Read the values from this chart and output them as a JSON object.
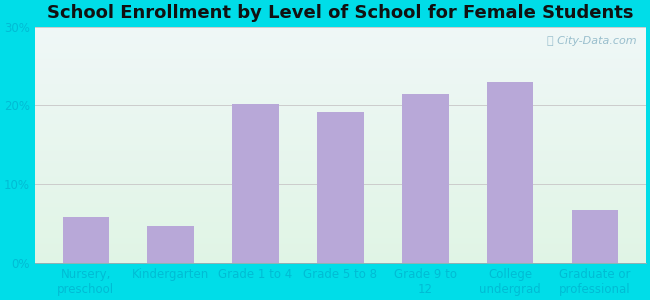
{
  "title": "School Enrollment by Level of School for Female Students",
  "categories": [
    "Nursery,\npreschool",
    "Kindergarten",
    "Grade 1 to 4",
    "Grade 5 to 8",
    "Grade 9 to\n12",
    "College\nundergrad",
    "Graduate or\nprofessional"
  ],
  "values": [
    5.8,
    4.7,
    20.2,
    19.2,
    21.5,
    23.0,
    6.7
  ],
  "bar_color": "#b8a8d8",
  "ylim": [
    0,
    30
  ],
  "yticks": [
    0,
    10,
    20,
    30
  ],
  "ytick_labels": [
    "0%",
    "10%",
    "20%",
    "30%"
  ],
  "title_fontsize": 13,
  "tick_fontsize": 8.5,
  "bg_outer": "#00dde8",
  "watermark": "City-Data.com",
  "grid_color": "#cccccc",
  "tick_color": "#00bcd4",
  "grad_top_color": "#e8f5e9",
  "grad_bottom_color": "#e0f0f8"
}
